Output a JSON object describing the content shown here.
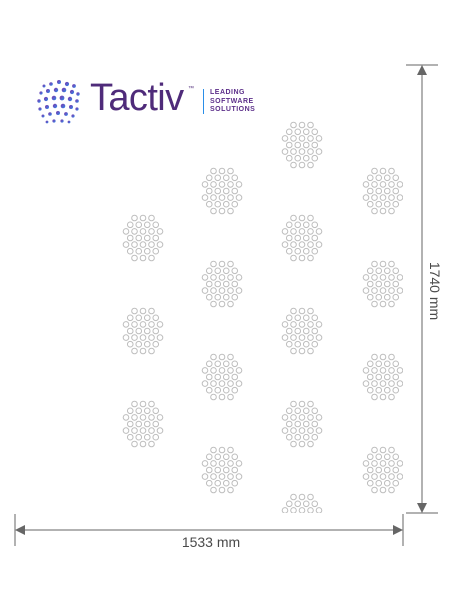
{
  "logo": {
    "brand_name": "Tactiv",
    "trademark": "™",
    "tagline_line_1": "LEADING",
    "tagline_line_2": "SOFTWARE",
    "tagline_line_3": "SOLUTIONS",
    "brand_color": "#4f2b7a",
    "accent_color": "#2a8ee8",
    "dot_colors": [
      "#7a3ea8",
      "#5e58c8",
      "#2a8ee8",
      "#2a7de1"
    ]
  },
  "diagram": {
    "width_label": "1533 mm",
    "height_label": "1740 mm",
    "pattern_element": "hexagonal dot cluster",
    "pattern_color": "#bdbdbd",
    "dimension_line_color": "#666666"
  }
}
